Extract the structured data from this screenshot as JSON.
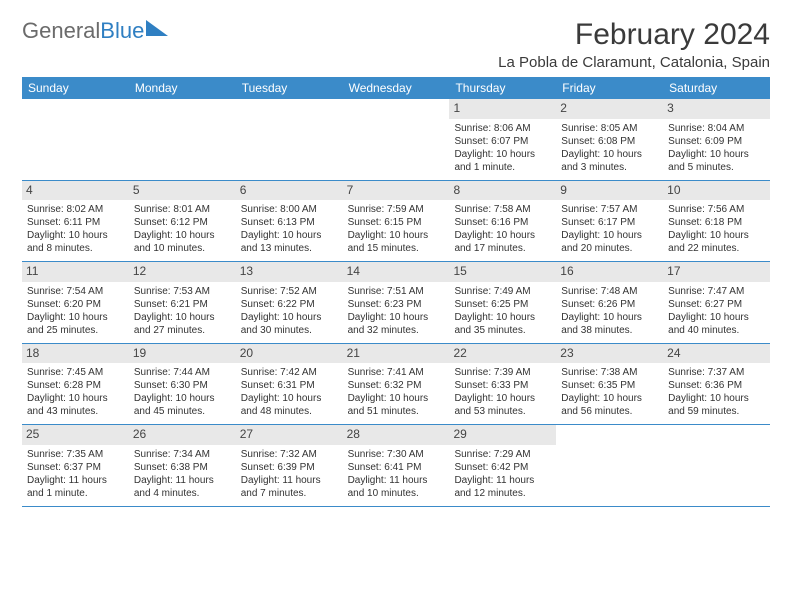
{
  "logo": {
    "text1": "General",
    "text2": "Blue"
  },
  "title": "February 2024",
  "location": "La Pobla de Claramunt, Catalonia, Spain",
  "colors": {
    "header_bg": "#3b8bc9",
    "header_fg": "#ffffff",
    "daynum_bg": "#e8e8e8",
    "rule": "#3b8bc9",
    "logo_gray": "#6b6b6b",
    "logo_blue": "#2f7fc2"
  },
  "dow": [
    "Sunday",
    "Monday",
    "Tuesday",
    "Wednesday",
    "Thursday",
    "Friday",
    "Saturday"
  ],
  "weeks": [
    [
      {
        "n": "",
        "sr": "",
        "ss": "",
        "dl": ""
      },
      {
        "n": "",
        "sr": "",
        "ss": "",
        "dl": ""
      },
      {
        "n": "",
        "sr": "",
        "ss": "",
        "dl": ""
      },
      {
        "n": "",
        "sr": "",
        "ss": "",
        "dl": ""
      },
      {
        "n": "1",
        "sr": "Sunrise: 8:06 AM",
        "ss": "Sunset: 6:07 PM",
        "dl": "Daylight: 10 hours and 1 minute."
      },
      {
        "n": "2",
        "sr": "Sunrise: 8:05 AM",
        "ss": "Sunset: 6:08 PM",
        "dl": "Daylight: 10 hours and 3 minutes."
      },
      {
        "n": "3",
        "sr": "Sunrise: 8:04 AM",
        "ss": "Sunset: 6:09 PM",
        "dl": "Daylight: 10 hours and 5 minutes."
      }
    ],
    [
      {
        "n": "4",
        "sr": "Sunrise: 8:02 AM",
        "ss": "Sunset: 6:11 PM",
        "dl": "Daylight: 10 hours and 8 minutes."
      },
      {
        "n": "5",
        "sr": "Sunrise: 8:01 AM",
        "ss": "Sunset: 6:12 PM",
        "dl": "Daylight: 10 hours and 10 minutes."
      },
      {
        "n": "6",
        "sr": "Sunrise: 8:00 AM",
        "ss": "Sunset: 6:13 PM",
        "dl": "Daylight: 10 hours and 13 minutes."
      },
      {
        "n": "7",
        "sr": "Sunrise: 7:59 AM",
        "ss": "Sunset: 6:15 PM",
        "dl": "Daylight: 10 hours and 15 minutes."
      },
      {
        "n": "8",
        "sr": "Sunrise: 7:58 AM",
        "ss": "Sunset: 6:16 PM",
        "dl": "Daylight: 10 hours and 17 minutes."
      },
      {
        "n": "9",
        "sr": "Sunrise: 7:57 AM",
        "ss": "Sunset: 6:17 PM",
        "dl": "Daylight: 10 hours and 20 minutes."
      },
      {
        "n": "10",
        "sr": "Sunrise: 7:56 AM",
        "ss": "Sunset: 6:18 PM",
        "dl": "Daylight: 10 hours and 22 minutes."
      }
    ],
    [
      {
        "n": "11",
        "sr": "Sunrise: 7:54 AM",
        "ss": "Sunset: 6:20 PM",
        "dl": "Daylight: 10 hours and 25 minutes."
      },
      {
        "n": "12",
        "sr": "Sunrise: 7:53 AM",
        "ss": "Sunset: 6:21 PM",
        "dl": "Daylight: 10 hours and 27 minutes."
      },
      {
        "n": "13",
        "sr": "Sunrise: 7:52 AM",
        "ss": "Sunset: 6:22 PM",
        "dl": "Daylight: 10 hours and 30 minutes."
      },
      {
        "n": "14",
        "sr": "Sunrise: 7:51 AM",
        "ss": "Sunset: 6:23 PM",
        "dl": "Daylight: 10 hours and 32 minutes."
      },
      {
        "n": "15",
        "sr": "Sunrise: 7:49 AM",
        "ss": "Sunset: 6:25 PM",
        "dl": "Daylight: 10 hours and 35 minutes."
      },
      {
        "n": "16",
        "sr": "Sunrise: 7:48 AM",
        "ss": "Sunset: 6:26 PM",
        "dl": "Daylight: 10 hours and 38 minutes."
      },
      {
        "n": "17",
        "sr": "Sunrise: 7:47 AM",
        "ss": "Sunset: 6:27 PM",
        "dl": "Daylight: 10 hours and 40 minutes."
      }
    ],
    [
      {
        "n": "18",
        "sr": "Sunrise: 7:45 AM",
        "ss": "Sunset: 6:28 PM",
        "dl": "Daylight: 10 hours and 43 minutes."
      },
      {
        "n": "19",
        "sr": "Sunrise: 7:44 AM",
        "ss": "Sunset: 6:30 PM",
        "dl": "Daylight: 10 hours and 45 minutes."
      },
      {
        "n": "20",
        "sr": "Sunrise: 7:42 AM",
        "ss": "Sunset: 6:31 PM",
        "dl": "Daylight: 10 hours and 48 minutes."
      },
      {
        "n": "21",
        "sr": "Sunrise: 7:41 AM",
        "ss": "Sunset: 6:32 PM",
        "dl": "Daylight: 10 hours and 51 minutes."
      },
      {
        "n": "22",
        "sr": "Sunrise: 7:39 AM",
        "ss": "Sunset: 6:33 PM",
        "dl": "Daylight: 10 hours and 53 minutes."
      },
      {
        "n": "23",
        "sr": "Sunrise: 7:38 AM",
        "ss": "Sunset: 6:35 PM",
        "dl": "Daylight: 10 hours and 56 minutes."
      },
      {
        "n": "24",
        "sr": "Sunrise: 7:37 AM",
        "ss": "Sunset: 6:36 PM",
        "dl": "Daylight: 10 hours and 59 minutes."
      }
    ],
    [
      {
        "n": "25",
        "sr": "Sunrise: 7:35 AM",
        "ss": "Sunset: 6:37 PM",
        "dl": "Daylight: 11 hours and 1 minute."
      },
      {
        "n": "26",
        "sr": "Sunrise: 7:34 AM",
        "ss": "Sunset: 6:38 PM",
        "dl": "Daylight: 11 hours and 4 minutes."
      },
      {
        "n": "27",
        "sr": "Sunrise: 7:32 AM",
        "ss": "Sunset: 6:39 PM",
        "dl": "Daylight: 11 hours and 7 minutes."
      },
      {
        "n": "28",
        "sr": "Sunrise: 7:30 AM",
        "ss": "Sunset: 6:41 PM",
        "dl": "Daylight: 11 hours and 10 minutes."
      },
      {
        "n": "29",
        "sr": "Sunrise: 7:29 AM",
        "ss": "Sunset: 6:42 PM",
        "dl": "Daylight: 11 hours and 12 minutes."
      },
      {
        "n": "",
        "sr": "",
        "ss": "",
        "dl": ""
      },
      {
        "n": "",
        "sr": "",
        "ss": "",
        "dl": ""
      }
    ]
  ]
}
